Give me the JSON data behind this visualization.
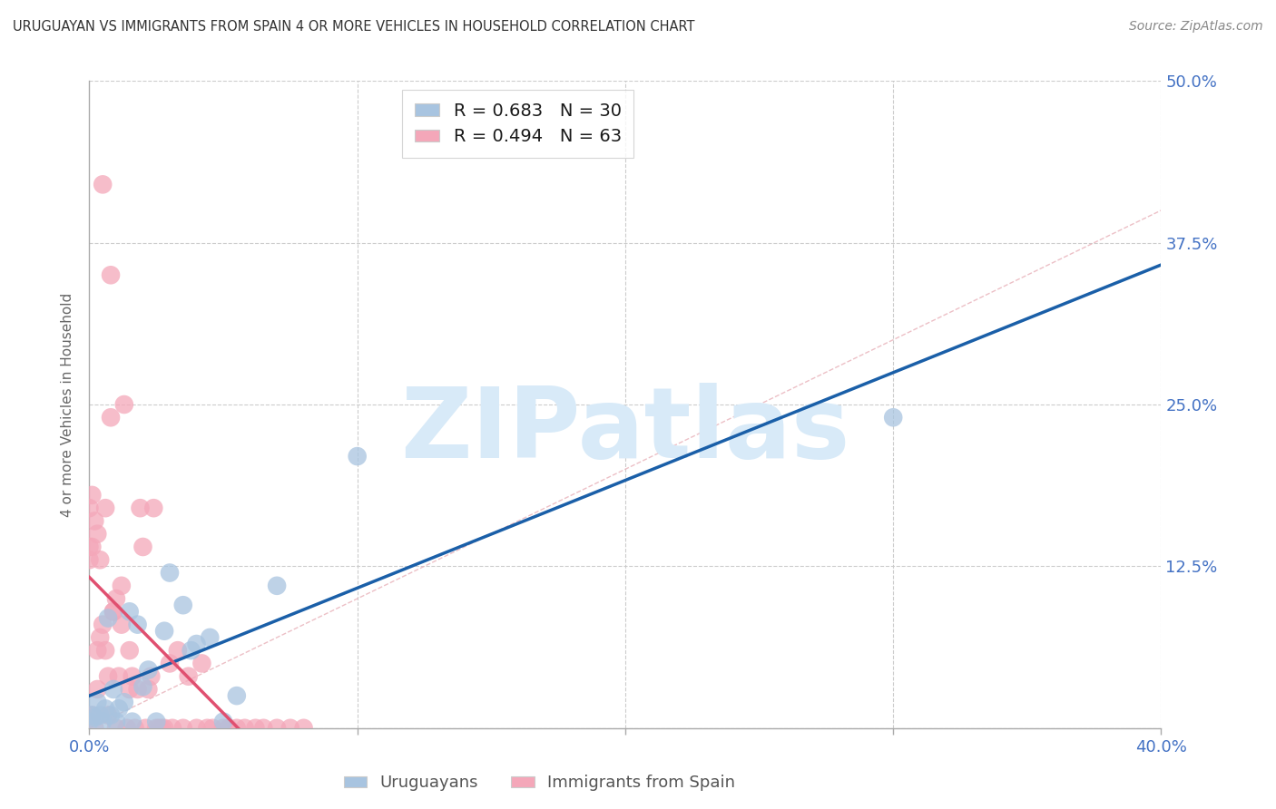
{
  "title": "URUGUAYAN VS IMMIGRANTS FROM SPAIN 4 OR MORE VEHICLES IN HOUSEHOLD CORRELATION CHART",
  "source": "Source: ZipAtlas.com",
  "ylabel": "4 or more Vehicles in Household",
  "xlim": [
    0.0,
    0.4
  ],
  "ylim": [
    0.0,
    0.5
  ],
  "yticks": [
    0.0,
    0.125,
    0.25,
    0.375,
    0.5
  ],
  "ytick_labels": [
    "",
    "12.5%",
    "25.0%",
    "37.5%",
    "50.0%"
  ],
  "xticks": [
    0.0,
    0.1,
    0.2,
    0.3,
    0.4
  ],
  "xtick_labels": [
    "0.0%",
    "",
    "",
    "",
    "40.0%"
  ],
  "blue_scatter_color": "#a8c4e0",
  "pink_scatter_color": "#f4a7b9",
  "blue_line_color": "#1a5fa8",
  "pink_line_color": "#e05070",
  "diagonal_color": "#e8b0b8",
  "background": "#ffffff",
  "grid_color": "#cccccc",
  "axis_color": "#aaaaaa",
  "title_color": "#333333",
  "source_color": "#888888",
  "label_color": "#4472c4",
  "ylabel_color": "#666666",
  "watermark_text": "ZIPatlas",
  "watermark_color": "#d8eaf8",
  "legend1_label": "R = 0.683   N = 30",
  "legend2_label": "R = 0.494   N = 63",
  "cat1_label": "Uruguayans",
  "cat2_label": "Immigrants from Spain",
  "uru_x": [
    0.0,
    0.001,
    0.002,
    0.003,
    0.004,
    0.005,
    0.006,
    0.007,
    0.008,
    0.009,
    0.01,
    0.011,
    0.013,
    0.015,
    0.016,
    0.018,
    0.02,
    0.022,
    0.025,
    0.028,
    0.03,
    0.035,
    0.038,
    0.04,
    0.045,
    0.05,
    0.055,
    0.07,
    0.1,
    0.3
  ],
  "uru_y": [
    0.005,
    0.01,
    0.008,
    0.02,
    0.01,
    0.005,
    0.015,
    0.085,
    0.01,
    0.03,
    0.005,
    0.015,
    0.02,
    0.09,
    0.005,
    0.08,
    0.032,
    0.045,
    0.005,
    0.075,
    0.12,
    0.095,
    0.06,
    0.065,
    0.07,
    0.005,
    0.025,
    0.11,
    0.21,
    0.24
  ],
  "sp_x": [
    0.0,
    0.0,
    0.0,
    0.001,
    0.001,
    0.001,
    0.002,
    0.002,
    0.003,
    0.003,
    0.003,
    0.004,
    0.004,
    0.005,
    0.005,
    0.006,
    0.006,
    0.007,
    0.007,
    0.008,
    0.008,
    0.009,
    0.009,
    0.01,
    0.01,
    0.011,
    0.012,
    0.012,
    0.013,
    0.014,
    0.015,
    0.015,
    0.016,
    0.017,
    0.018,
    0.019,
    0.02,
    0.021,
    0.022,
    0.023,
    0.024,
    0.025,
    0.026,
    0.027,
    0.028,
    0.03,
    0.031,
    0.033,
    0.035,
    0.037,
    0.04,
    0.042,
    0.044,
    0.046,
    0.05,
    0.052,
    0.055,
    0.058,
    0.062,
    0.065,
    0.07,
    0.075,
    0.08
  ],
  "sp_y": [
    0.13,
    0.14,
    0.17,
    0.14,
    0.01,
    0.18,
    0.0,
    0.16,
    0.06,
    0.15,
    0.03,
    0.13,
    0.07,
    0.42,
    0.08,
    0.17,
    0.06,
    0.04,
    0.01,
    0.24,
    0.35,
    0.09,
    0.09,
    0.0,
    0.1,
    0.04,
    0.11,
    0.08,
    0.25,
    0.0,
    0.06,
    0.03,
    0.04,
    0.0,
    0.03,
    0.17,
    0.14,
    0.0,
    0.03,
    0.04,
    0.17,
    0.0,
    0.0,
    0.0,
    0.0,
    0.05,
    0.0,
    0.06,
    0.0,
    0.04,
    0.0,
    0.05,
    0.0,
    0.0,
    0.0,
    0.0,
    0.0,
    0.0,
    0.0,
    0.0,
    0.0,
    0.0,
    0.0
  ]
}
